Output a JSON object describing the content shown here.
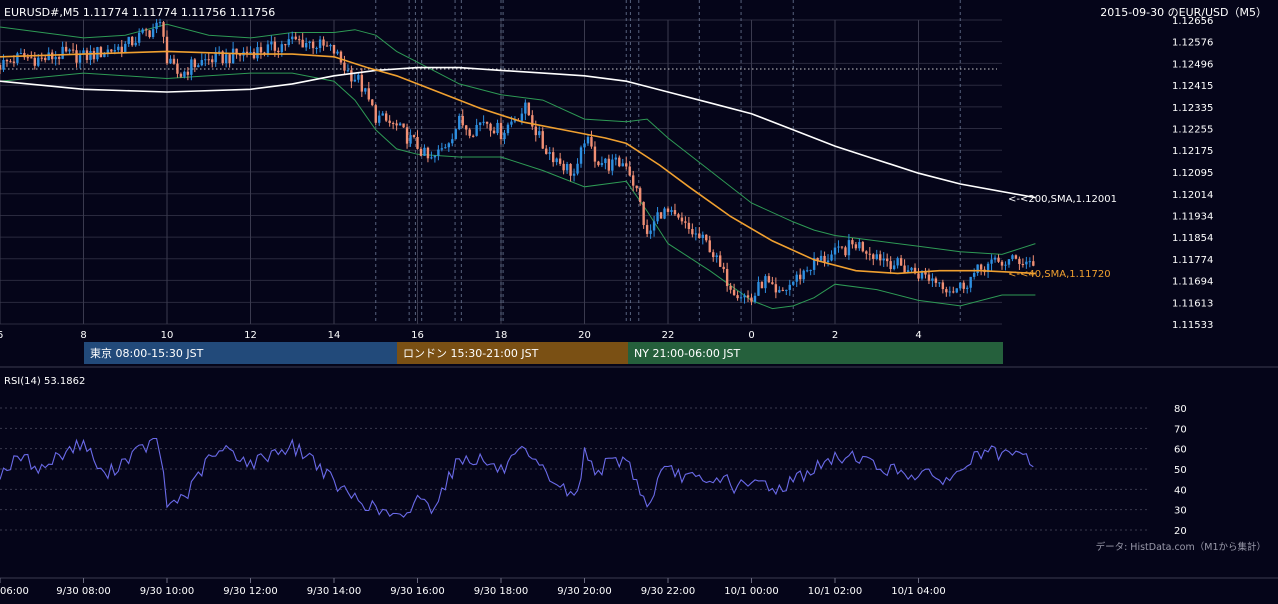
{
  "header": {
    "symbol_info": "EURUSD#,M5 1.11774 1.11774 1.11756 1.11756",
    "title_right": "2015-09-30 のEUR/USD（M5）"
  },
  "sessions": [
    {
      "label": "東京 08:00-15:30 JST",
      "color": "#224a7a"
    },
    {
      "label": "ロンドン 15:30-21:00 JST",
      "color": "#7a5014"
    },
    {
      "label": "NY 21:00-06:00 JST",
      "color": "#25603c"
    }
  ],
  "annotations": {
    "sma200": "<-<200,SMA,1.12001",
    "sma40": "<-<40,SMA,1.11720"
  },
  "rsi": {
    "label": "RSI(14) 53.1862",
    "ticks": [
      "80",
      "70",
      "60",
      "50",
      "40",
      "30",
      "20"
    ]
  },
  "source": "データ: HistData.com（M1から集計）",
  "colors": {
    "up": "#2e8fe0",
    "down": "#f08f74",
    "sma40": "#f0a030",
    "sma200": "#ffffff",
    "bollinger": "#2e9a55",
    "rsi": "#6a6ae8"
  },
  "chart_data": {
    "type": "candlestick",
    "timeframe": "M5",
    "ylim": [
      1.11533,
      1.12656
    ],
    "y_ticks": [
      "1.12656",
      "1.12576",
      "1.12496",
      "1.12415",
      "1.12335",
      "1.12255",
      "1.12175",
      "1.12095",
      "1.12014",
      "1.11934",
      "1.11854",
      "1.11774",
      "1.11694",
      "1.11613",
      "1.11533"
    ],
    "hour_ticks": [
      "6",
      "8",
      "10",
      "12",
      "14",
      "16",
      "18",
      "20",
      "22",
      "0",
      "2",
      "4"
    ],
    "time_labels": [
      "06:00",
      "9/30 08:00",
      "9/30 10:00",
      "9/30 12:00",
      "9/30 14:00",
      "9/30 16:00",
      "9/30 18:00",
      "9/30 20:00",
      "9/30 22:00",
      "10/1 00:00",
      "10/1 02:00",
      "10/1 04:00"
    ],
    "reference_level": 1.12475,
    "close_path": [
      [
        6.0,
        1.1249
      ],
      [
        6.5,
        1.1252
      ],
      [
        7.0,
        1.1251
      ],
      [
        7.5,
        1.1253
      ],
      [
        8.0,
        1.1252
      ],
      [
        8.5,
        1.1254
      ],
      [
        9.0,
        1.1256
      ],
      [
        9.5,
        1.1261
      ],
      [
        9.9,
        1.1264
      ],
      [
        10.0,
        1.125
      ],
      [
        10.3,
        1.1245
      ],
      [
        10.6,
        1.1249
      ],
      [
        11.0,
        1.1251
      ],
      [
        11.5,
        1.1252
      ],
      [
        12.0,
        1.1254
      ],
      [
        12.5,
        1.1255
      ],
      [
        13.0,
        1.1258
      ],
      [
        13.5,
        1.1257
      ],
      [
        14.0,
        1.1254
      ],
      [
        14.3,
        1.1247
      ],
      [
        14.6,
        1.1243
      ],
      [
        15.0,
        1.123
      ],
      [
        15.5,
        1.1226
      ],
      [
        16.0,
        1.1219
      ],
      [
        16.3,
        1.1213
      ],
      [
        16.6,
        1.1218
      ],
      [
        17.0,
        1.1228
      ],
      [
        17.3,
        1.1225
      ],
      [
        17.6,
        1.1229
      ],
      [
        18.0,
        1.1224
      ],
      [
        18.3,
        1.1229
      ],
      [
        18.6,
        1.1233
      ],
      [
        19.0,
        1.1219
      ],
      [
        19.5,
        1.1212
      ],
      [
        19.8,
        1.1208
      ],
      [
        20.0,
        1.1222
      ],
      [
        20.3,
        1.1214
      ],
      [
        20.6,
        1.1212
      ],
      [
        21.0,
        1.1213
      ],
      [
        21.3,
        1.12
      ],
      [
        21.5,
        1.1185
      ],
      [
        21.8,
        1.1195
      ],
      [
        22.0,
        1.1194
      ],
      [
        22.5,
        1.1188
      ],
      [
        23.0,
        1.1182
      ],
      [
        23.3,
        1.1172
      ],
      [
        23.6,
        1.1166
      ],
      [
        24.0,
        1.1162
      ],
      [
        24.3,
        1.117
      ],
      [
        24.6,
        1.1163
      ],
      [
        25.0,
        1.1169
      ],
      [
        25.5,
        1.1176
      ],
      [
        26.0,
        1.1179
      ],
      [
        26.5,
        1.1183
      ],
      [
        27.0,
        1.1179
      ],
      [
        27.5,
        1.1175
      ],
      [
        28.0,
        1.1172
      ],
      [
        28.5,
        1.1169
      ],
      [
        28.8,
        1.1166
      ],
      [
        29.0,
        1.1167
      ],
      [
        29.3,
        1.1171
      ],
      [
        29.6,
        1.1175
      ],
      [
        30.0,
        1.1176
      ],
      [
        30.4,
        1.1177
      ],
      [
        30.8,
        1.1176
      ]
    ],
    "series": [
      {
        "name": "SMA(40)",
        "points": [
          [
            6,
            1.1252
          ],
          [
            8,
            1.1253
          ],
          [
            10,
            1.1254
          ],
          [
            12,
            1.1253
          ],
          [
            13,
            1.1253
          ],
          [
            14,
            1.1252
          ],
          [
            14.8,
            1.1248
          ],
          [
            15.5,
            1.1245
          ],
          [
            16.5,
            1.1239
          ],
          [
            17.5,
            1.1233
          ],
          [
            18.5,
            1.1228
          ],
          [
            19.5,
            1.1225
          ],
          [
            20.5,
            1.1222
          ],
          [
            21.0,
            1.122
          ],
          [
            21.8,
            1.1212
          ],
          [
            22.5,
            1.1204
          ],
          [
            23.5,
            1.1193
          ],
          [
            24.5,
            1.1184
          ],
          [
            25.5,
            1.1177
          ],
          [
            26.5,
            1.1173
          ],
          [
            27.5,
            1.1172
          ],
          [
            28.5,
            1.1173
          ],
          [
            29.5,
            1.1173
          ],
          [
            30.8,
            1.1172
          ]
        ]
      },
      {
        "name": "SMA(200)",
        "points": [
          [
            6,
            1.1243
          ],
          [
            8,
            1.124
          ],
          [
            10,
            1.1239
          ],
          [
            12,
            1.124
          ],
          [
            13,
            1.1242
          ],
          [
            14,
            1.1245
          ],
          [
            15,
            1.1247
          ],
          [
            16,
            1.1248
          ],
          [
            17,
            1.1248
          ],
          [
            18,
            1.1247
          ],
          [
            19,
            1.1246
          ],
          [
            20,
            1.1245
          ],
          [
            21,
            1.1243
          ],
          [
            22,
            1.1239
          ],
          [
            23,
            1.1235
          ],
          [
            24,
            1.1231
          ],
          [
            25,
            1.1225
          ],
          [
            26,
            1.1219
          ],
          [
            27,
            1.1214
          ],
          [
            28,
            1.1209
          ],
          [
            29,
            1.1205
          ],
          [
            30.8,
            1.12
          ]
        ]
      },
      {
        "name": "BB upper",
        "points": [
          [
            6,
            1.1263
          ],
          [
            8,
            1.1259
          ],
          [
            9,
            1.126
          ],
          [
            10,
            1.1264
          ],
          [
            11,
            1.126
          ],
          [
            12,
            1.1259
          ],
          [
            13,
            1.1261
          ],
          [
            14,
            1.1261
          ],
          [
            14.5,
            1.1262
          ],
          [
            15.0,
            1.126
          ],
          [
            15.5,
            1.1254
          ],
          [
            16.0,
            1.125
          ],
          [
            17.0,
            1.1242
          ],
          [
            18.0,
            1.1238
          ],
          [
            19.0,
            1.1236
          ],
          [
            20.0,
            1.1229
          ],
          [
            21.0,
            1.1228
          ],
          [
            21.5,
            1.1229
          ],
          [
            22.0,
            1.1222
          ],
          [
            23.0,
            1.121
          ],
          [
            24.0,
            1.1198
          ],
          [
            25.0,
            1.1191
          ],
          [
            25.5,
            1.1188
          ],
          [
            26.0,
            1.1186
          ],
          [
            27.0,
            1.1184
          ],
          [
            28.0,
            1.1182
          ],
          [
            29.0,
            1.118
          ],
          [
            30.0,
            1.1179
          ],
          [
            30.8,
            1.1183
          ]
        ]
      },
      {
        "name": "BB lower",
        "points": [
          [
            6,
            1.1243
          ],
          [
            8,
            1.1246
          ],
          [
            10,
            1.1244
          ],
          [
            11,
            1.1245
          ],
          [
            12,
            1.1246
          ],
          [
            13,
            1.1246
          ],
          [
            14,
            1.1243
          ],
          [
            14.5,
            1.1236
          ],
          [
            15.0,
            1.1225
          ],
          [
            15.5,
            1.1218
          ],
          [
            16.0,
            1.1216
          ],
          [
            17.0,
            1.1215
          ],
          [
            18.0,
            1.1215
          ],
          [
            19.0,
            1.121
          ],
          [
            20.0,
            1.1204
          ],
          [
            21.0,
            1.1206
          ],
          [
            21.5,
            1.1195
          ],
          [
            22.0,
            1.1183
          ],
          [
            23.0,
            1.1173
          ],
          [
            24.0,
            1.1162
          ],
          [
            24.5,
            1.1159
          ],
          [
            25.0,
            1.116
          ],
          [
            25.5,
            1.1163
          ],
          [
            26.0,
            1.1168
          ],
          [
            27.0,
            1.1166
          ],
          [
            28.0,
            1.1162
          ],
          [
            29.0,
            1.116
          ],
          [
            30.0,
            1.1164
          ],
          [
            30.8,
            1.1164
          ]
        ]
      },
      {
        "name": "RSI(14)",
        "points": [
          [
            6,
            48
          ],
          [
            6.5,
            56
          ],
          [
            7,
            50
          ],
          [
            7.5,
            58
          ],
          [
            8,
            63
          ],
          [
            8.5,
            46
          ],
          [
            9,
            55
          ],
          [
            9.5,
            61
          ],
          [
            9.8,
            64
          ],
          [
            10,
            32
          ],
          [
            10.5,
            38
          ],
          [
            11,
            55
          ],
          [
            11.5,
            60
          ],
          [
            12,
            52
          ],
          [
            12.5,
            58
          ],
          [
            13,
            61
          ],
          [
            13.5,
            55
          ],
          [
            14,
            43
          ],
          [
            14.3,
            38
          ],
          [
            14.6,
            35
          ],
          [
            15,
            30
          ],
          [
            15.3,
            28
          ],
          [
            15.7,
            24
          ],
          [
            16,
            38
          ],
          [
            16.3,
            30
          ],
          [
            16.7,
            44
          ],
          [
            17,
            55
          ],
          [
            17.5,
            55
          ],
          [
            18,
            49
          ],
          [
            18.5,
            58
          ],
          [
            19,
            49
          ],
          [
            19.5,
            40
          ],
          [
            19.8,
            35
          ],
          [
            20,
            58
          ],
          [
            20.3,
            49
          ],
          [
            20.6,
            53
          ],
          [
            21,
            55
          ],
          [
            21.3,
            42
          ],
          [
            21.5,
            30
          ],
          [
            21.8,
            47
          ],
          [
            22,
            49
          ],
          [
            22.5,
            46
          ],
          [
            23,
            42
          ],
          [
            23.3,
            47
          ],
          [
            23.6,
            41
          ],
          [
            24,
            42
          ],
          [
            24.3,
            44
          ],
          [
            24.6,
            39
          ],
          [
            25,
            45
          ],
          [
            25.5,
            50
          ],
          [
            26,
            55
          ],
          [
            26.5,
            57
          ],
          [
            27,
            51
          ],
          [
            27.5,
            49
          ],
          [
            28,
            47
          ],
          [
            28.5,
            46
          ],
          [
            28.8,
            44
          ],
          [
            29,
            50
          ],
          [
            29.3,
            55
          ],
          [
            29.6,
            59
          ],
          [
            30,
            56
          ],
          [
            30.4,
            57
          ],
          [
            30.8,
            53
          ]
        ]
      }
    ],
    "session_lines": [
      15.0,
      15.8,
      15.95,
      16.1,
      16.9,
      17.05,
      18.0,
      18.05,
      21.0,
      21.1,
      21.3,
      22.75,
      23.75,
      25.0,
      29.0
    ]
  }
}
